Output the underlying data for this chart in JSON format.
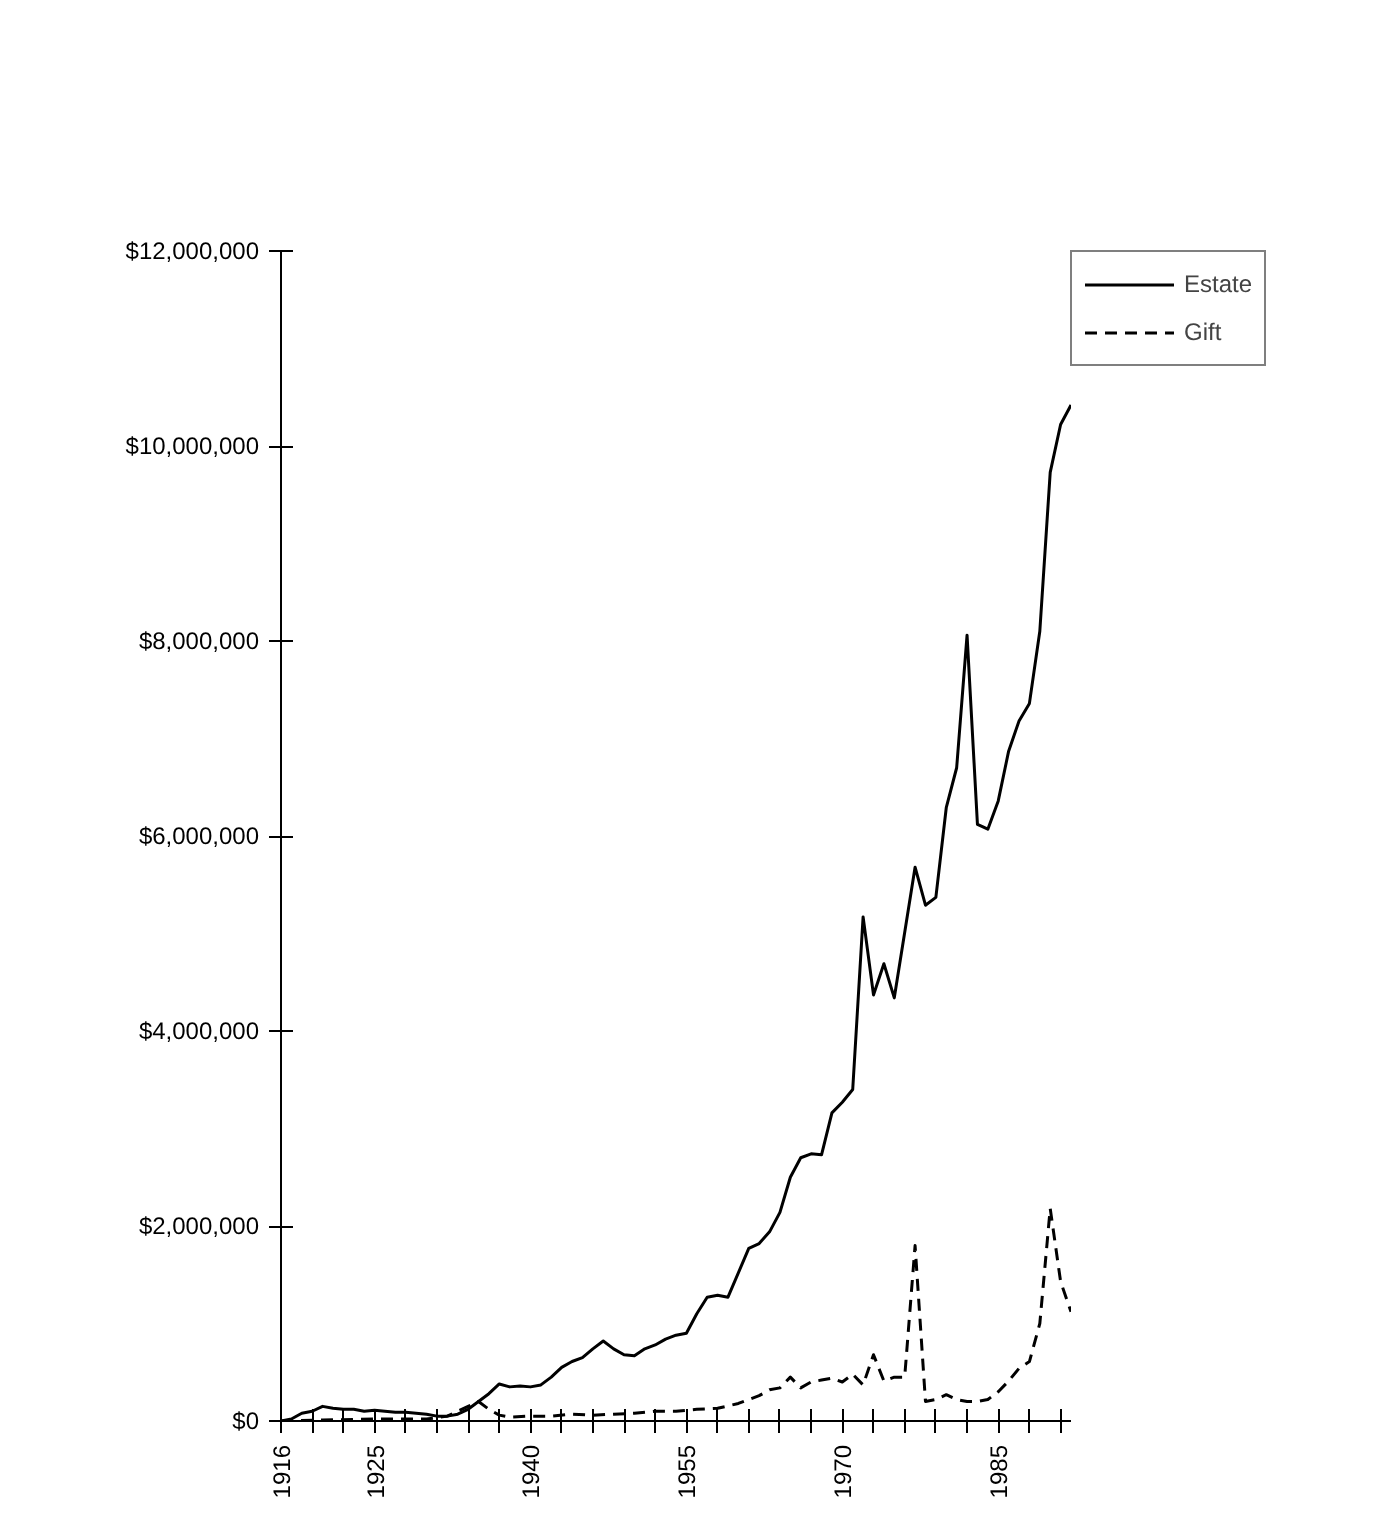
{
  "chart_data": {
    "type": "line",
    "xlim": [
      1916,
      1992
    ],
    "ylim": [
      0,
      12000000
    ],
    "xticks": [
      {
        "value": 1916,
        "label": "1916"
      },
      {
        "value": 1919,
        "label": null
      },
      {
        "value": 1922,
        "label": null
      },
      {
        "value": 1925,
        "label": "1925"
      },
      {
        "value": 1928,
        "label": null
      },
      {
        "value": 1931,
        "label": null
      },
      {
        "value": 1934,
        "label": null
      },
      {
        "value": 1937,
        "label": null
      },
      {
        "value": 1940,
        "label": "1940"
      },
      {
        "value": 1943,
        "label": null
      },
      {
        "value": 1946,
        "label": null
      },
      {
        "value": 1949,
        "label": null
      },
      {
        "value": 1952,
        "label": null
      },
      {
        "value": 1955,
        "label": "1955"
      },
      {
        "value": 1958,
        "label": null
      },
      {
        "value": 1961,
        "label": null
      },
      {
        "value": 1964,
        "label": null
      },
      {
        "value": 1967,
        "label": null
      },
      {
        "value": 1970,
        "label": "1970"
      },
      {
        "value": 1973,
        "label": null
      },
      {
        "value": 1976,
        "label": null
      },
      {
        "value": 1979,
        "label": null
      },
      {
        "value": 1982,
        "label": null
      },
      {
        "value": 1985,
        "label": "1985"
      },
      {
        "value": 1988,
        "label": null
      },
      {
        "value": 1991,
        "label": null
      }
    ],
    "yticks": [
      {
        "value": 0,
        "label": "$0"
      },
      {
        "value": 2000000,
        "label": "$2,000,000"
      },
      {
        "value": 4000000,
        "label": "$4,000,000"
      },
      {
        "value": 6000000,
        "label": "$6,000,000"
      },
      {
        "value": 8000000,
        "label": "$8,000,000"
      },
      {
        "value": 10000000,
        "label": "$10,000,000"
      },
      {
        "value": 12000000,
        "label": "$12,000,000"
      }
    ],
    "grid": false,
    "legend": "top right",
    "marker": "none",
    "series": [
      {
        "name": "Estate",
        "color": "#000000",
        "line_style": "solid",
        "x": [
          1916,
          1917,
          1918,
          1919,
          1920,
          1921,
          1922,
          1923,
          1924,
          1925,
          1926,
          1927,
          1928,
          1929,
          1930,
          1931,
          1932,
          1933,
          1934,
          1935,
          1936,
          1937,
          1938,
          1939,
          1940,
          1941,
          1942,
          1943,
          1944,
          1945,
          1946,
          1947,
          1948,
          1949,
          1950,
          1951,
          1952,
          1953,
          1954,
          1955,
          1956,
          1957,
          1958,
          1959,
          1961,
          1962,
          1963,
          1964,
          1965,
          1966,
          1967,
          1968,
          1969,
          1970,
          1971,
          1972,
          1973,
          1974,
          1975,
          1977,
          1978,
          1979,
          1980,
          1981,
          1982,
          1983,
          1984,
          1985,
          1986,
          1987,
          1988,
          1989,
          1990,
          1991,
          1992
        ],
        "values": [
          0,
          20000,
          80000,
          100000,
          150000,
          130000,
          120000,
          120000,
          100000,
          110000,
          100000,
          90000,
          90000,
          80000,
          70000,
          50000,
          50000,
          70000,
          120000,
          200000,
          280000,
          380000,
          350000,
          360000,
          350000,
          370000,
          450000,
          550000,
          610000,
          650000,
          740000,
          820000,
          740000,
          680000,
          670000,
          740000,
          780000,
          840000,
          880000,
          900000,
          1100000,
          1270000,
          1290000,
          1270000,
          1770000,
          1820000,
          1940000,
          2140000,
          2500000,
          2700000,
          2740000,
          2730000,
          3160000,
          3270000,
          3400000,
          5170000,
          4370000,
          4690000,
          4340000,
          5680000,
          5290000,
          5370000,
          6290000,
          6700000,
          8060000,
          6120000,
          6070000,
          6360000,
          6870000,
          7180000,
          7360000,
          8100000,
          9730000,
          10220000,
          10420000
        ]
      },
      {
        "name": "Gift",
        "color": "#000000",
        "line_style": "dashed",
        "x": [
          1916,
          1920,
          1925,
          1930,
          1932,
          1933,
          1934,
          1935,
          1936,
          1937,
          1938,
          1940,
          1942,
          1944,
          1946,
          1948,
          1950,
          1952,
          1954,
          1956,
          1958,
          1960,
          1961,
          1962,
          1963,
          1964,
          1965,
          1966,
          1967,
          1968,
          1969,
          1970,
          1971,
          1972,
          1973,
          1974,
          1975,
          1976,
          1977,
          1978,
          1979,
          1980,
          1981,
          1982,
          1983,
          1984,
          1985,
          1986,
          1987,
          1988,
          1989,
          1990,
          1991,
          1992
        ],
        "values": [
          0,
          10000,
          20000,
          20000,
          50000,
          100000,
          150000,
          200000,
          120000,
          60000,
          40000,
          50000,
          50000,
          70000,
          60000,
          70000,
          80000,
          100000,
          100000,
          120000,
          130000,
          180000,
          220000,
          260000,
          320000,
          340000,
          450000,
          340000,
          400000,
          420000,
          440000,
          400000,
          480000,
          370000,
          680000,
          410000,
          450000,
          450000,
          1800000,
          200000,
          220000,
          270000,
          220000,
          200000,
          200000,
          220000,
          300000,
          410000,
          540000,
          610000,
          1000000,
          2180000,
          1430000,
          1120000
        ]
      }
    ]
  }
}
